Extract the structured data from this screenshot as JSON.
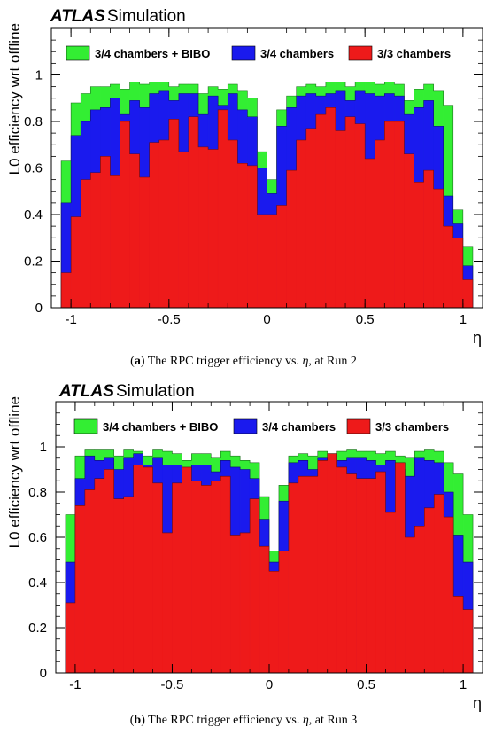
{
  "chart_data": [
    {
      "type": "bar",
      "stacked": "overlay",
      "experiment": "ATLAS",
      "tag": "Simulation",
      "ylabel": "L0 efficiency wrt offline",
      "xlabel": "η",
      "xlim": [
        -1.1,
        1.1
      ],
      "ylim": [
        0,
        1.2
      ],
      "xticks": [
        "-1",
        "-0.5",
        "0",
        "0.5",
        "1"
      ],
      "yticks": [
        "0",
        "0.2",
        "0.4",
        "0.6",
        "0.8",
        "1"
      ],
      "legend_position": "top",
      "bin_edges": [
        -1.05,
        -1.0,
        -0.95,
        -0.9,
        -0.85,
        -0.8,
        -0.75,
        -0.7,
        -0.65,
        -0.6,
        -0.55,
        -0.5,
        -0.45,
        -0.4,
        -0.35,
        -0.3,
        -0.25,
        -0.2,
        -0.15,
        -0.1,
        -0.05,
        0.0,
        0.05,
        0.1,
        0.15,
        0.2,
        0.25,
        0.3,
        0.35,
        0.4,
        0.45,
        0.5,
        0.55,
        0.6,
        0.65,
        0.7,
        0.75,
        0.8,
        0.85,
        0.9,
        0.95,
        1.0,
        1.05
      ],
      "series": [
        {
          "name": "3/4 chambers + BIBO",
          "color": "#33ee33",
          "values": [
            0.63,
            0.88,
            0.92,
            0.95,
            0.95,
            0.96,
            0.94,
            0.97,
            0.96,
            0.97,
            0.97,
            0.95,
            0.96,
            0.96,
            0.92,
            0.95,
            0.94,
            0.96,
            0.93,
            0.9,
            0.67,
            0.55,
            0.85,
            0.91,
            0.95,
            0.96,
            0.95,
            0.97,
            0.97,
            0.95,
            0.97,
            0.97,
            0.96,
            0.97,
            0.96,
            0.89,
            0.94,
            0.96,
            0.93,
            0.87,
            0.42,
            0.26
          ]
        },
        {
          "name": "3/4 chambers",
          "color": "#1a1aee",
          "values": [
            0.45,
            0.74,
            0.8,
            0.85,
            0.86,
            0.9,
            0.83,
            0.89,
            0.86,
            0.92,
            0.93,
            0.89,
            0.92,
            0.92,
            0.83,
            0.91,
            0.87,
            0.92,
            0.85,
            0.82,
            0.6,
            0.49,
            0.78,
            0.86,
            0.91,
            0.92,
            0.91,
            0.92,
            0.93,
            0.89,
            0.93,
            0.92,
            0.91,
            0.92,
            0.91,
            0.83,
            0.86,
            0.89,
            0.78,
            0.48,
            0.36,
            0.18
          ]
        },
        {
          "name": "3/3 chambers",
          "color": "#ee1a1a",
          "values": [
            0.15,
            0.39,
            0.55,
            0.58,
            0.65,
            0.57,
            0.8,
            0.66,
            0.56,
            0.71,
            0.72,
            0.81,
            0.67,
            0.82,
            0.69,
            0.68,
            0.85,
            0.72,
            0.62,
            0.61,
            0.4,
            0.4,
            0.44,
            0.59,
            0.72,
            0.77,
            0.83,
            0.86,
            0.76,
            0.82,
            0.79,
            0.64,
            0.72,
            0.8,
            0.8,
            0.66,
            0.54,
            0.59,
            0.51,
            0.35,
            0.3,
            0.12
          ]
        }
      ]
    },
    {
      "type": "bar",
      "stacked": "overlay",
      "experiment": "ATLAS",
      "tag": "Simulation",
      "ylabel": "L0 efficiency wrt offline",
      "xlabel": "η",
      "xlim": [
        -1.1,
        1.1
      ],
      "ylim": [
        0,
        1.2
      ],
      "xticks": [
        "-1",
        "-0.5",
        "0",
        "0.5",
        "1"
      ],
      "yticks": [
        "0",
        "0.2",
        "0.4",
        "0.6",
        "0.8",
        "1"
      ],
      "legend_position": "top",
      "bin_edges": [
        -1.05,
        -1.0,
        -0.95,
        -0.9,
        -0.85,
        -0.8,
        -0.75,
        -0.7,
        -0.65,
        -0.6,
        -0.55,
        -0.5,
        -0.45,
        -0.4,
        -0.35,
        -0.3,
        -0.25,
        -0.2,
        -0.15,
        -0.1,
        -0.05,
        0.0,
        0.05,
        0.1,
        0.15,
        0.2,
        0.25,
        0.3,
        0.35,
        0.4,
        0.45,
        0.5,
        0.55,
        0.6,
        0.65,
        0.7,
        0.75,
        0.8,
        0.85,
        0.9,
        0.95,
        1.0,
        1.05
      ],
      "series": [
        {
          "name": "3/4 chambers + BIBO",
          "color": "#33ee33",
          "values": [
            0.7,
            0.96,
            0.99,
            0.99,
            0.99,
            0.96,
            0.99,
            0.98,
            0.96,
            0.99,
            0.98,
            0.97,
            0.94,
            0.97,
            0.97,
            0.95,
            0.98,
            0.96,
            0.94,
            0.93,
            0.78,
            0.54,
            0.83,
            0.96,
            0.97,
            0.96,
            0.98,
            0.97,
            0.98,
            0.99,
            0.98,
            0.98,
            0.97,
            0.98,
            0.96,
            0.95,
            0.98,
            0.99,
            0.98,
            0.93,
            0.88,
            0.7
          ]
        },
        {
          "name": "3/4 chambers",
          "color": "#1a1aee",
          "values": [
            0.49,
            0.86,
            0.96,
            0.94,
            0.95,
            0.9,
            0.95,
            0.97,
            0.92,
            0.95,
            0.92,
            0.92,
            0.9,
            0.92,
            0.92,
            0.89,
            0.94,
            0.91,
            0.9,
            0.86,
            0.68,
            0.49,
            0.76,
            0.93,
            0.94,
            0.9,
            0.95,
            0.93,
            0.94,
            0.95,
            0.95,
            0.94,
            0.92,
            0.94,
            0.9,
            0.87,
            0.95,
            0.94,
            0.93,
            0.8,
            0.61,
            0.49
          ]
        },
        {
          "name": "3/3 chambers",
          "color": "#ee1a1a",
          "values": [
            0.31,
            0.74,
            0.81,
            0.86,
            0.9,
            0.77,
            0.78,
            0.92,
            0.91,
            0.84,
            0.62,
            0.84,
            0.91,
            0.85,
            0.83,
            0.85,
            0.87,
            0.61,
            0.62,
            0.77,
            0.56,
            0.45,
            0.54,
            0.84,
            0.87,
            0.87,
            0.94,
            0.97,
            0.91,
            0.88,
            0.86,
            0.86,
            0.89,
            0.71,
            0.93,
            0.6,
            0.65,
            0.73,
            0.79,
            0.69,
            0.34,
            0.28
          ]
        }
      ]
    }
  ],
  "captions": {
    "a": {
      "label": "a",
      "text_before": "The RPC trigger efficiency vs. ",
      "symbol": "η",
      "text_after": ", at Run 2"
    },
    "b": {
      "label": "b",
      "text_before": "The RPC trigger efficiency vs. ",
      "symbol": "η",
      "text_after": ", at Run 3"
    }
  }
}
